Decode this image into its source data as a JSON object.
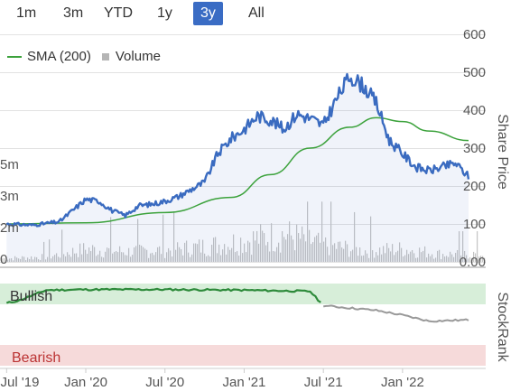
{
  "range_selector": {
    "options": [
      "1m",
      "3m",
      "YTD",
      "1y",
      "3y",
      "All"
    ],
    "selected": "3y"
  },
  "legend": {
    "sma_label": "SMA (200)",
    "volume_label": "Volume"
  },
  "colors": {
    "price": "#3a6bc0",
    "sma": "#3ca23c",
    "volume": "#c4c4c4",
    "bullish_band": "#d7eed9",
    "bearish_band": "#f6dada",
    "stockrank_bull": "#2d8a3a",
    "stockrank_neutral": "#999999",
    "selected_button": "#3a6cc4"
  },
  "chart_data": {
    "type": "line",
    "ylabel": "Share Price",
    "y_ticks": [
      "600",
      "500",
      "400",
      "300",
      "200",
      "100",
      "0.00"
    ],
    "ylim": [
      0,
      600
    ],
    "volume_ticks": [
      "5m",
      "3m",
      "2m",
      "0"
    ],
    "x_ticks": [
      "Jul '19",
      "Jan '20",
      "Jul '20",
      "Jan '21",
      "Jul '21",
      "Jan '22"
    ],
    "series": [
      {
        "name": "",
        "x": [
          "2019-07",
          "2019-09",
          "2019-11",
          "2020-01",
          "2020-02",
          "2020-03",
          "2020-04",
          "2020-05",
          "2020-06",
          "2020-07",
          "2020-08",
          "2020-10",
          "2020-11",
          "2020-12",
          "2021-01",
          "2021-02",
          "2021-03",
          "2021-04",
          "2021-05",
          "2021-06",
          "2021-07",
          "2021-08",
          "2021-09",
          "2021-10",
          "2021-11",
          "2021-12",
          "2022-01",
          "2022-02",
          "2022-03",
          "2022-04",
          "2022-05",
          "2022-06"
        ],
        "values": [
          100,
          97,
          106,
          165,
          160,
          135,
          122,
          148,
          152,
          160,
          172,
          210,
          285,
          325,
          350,
          385,
          375,
          350,
          390,
          378,
          360,
          430,
          490,
          465,
          420,
          320,
          285,
          250,
          240,
          250,
          260,
          225
        ]
      },
      {
        "name": "SMA (200)",
        "x": [
          "2019-07",
          "2020-01",
          "2020-07",
          "2020-12",
          "2021-03",
          "2021-06",
          "2021-09",
          "2021-11",
          "2022-01",
          "2022-03",
          "2022-06"
        ],
        "values": [
          100,
          103,
          130,
          170,
          230,
          300,
          355,
          380,
          370,
          345,
          320
        ]
      },
      {
        "name": "Volume",
        "x": [
          "2019-07",
          "2019-10",
          "2020-01",
          "2020-04",
          "2020-07",
          "2020-10",
          "2021-01",
          "2021-04",
          "2021-07",
          "2021-10",
          "2022-01",
          "2022-04"
        ],
        "values": [
          0.4,
          0.6,
          1.5,
          1.2,
          1.4,
          1.8,
          2.5,
          3.2,
          2.0,
          1.3,
          1.5,
          0.9
        ]
      }
    ]
  },
  "stockrank": {
    "label": "StockRank",
    "bullish_label": "Bullish",
    "bearish_label": "Bearish",
    "x": [
      "2019-07",
      "2019-08",
      "2019-10",
      "2020-01",
      "2020-07",
      "2021-01",
      "2021-06",
      "2021-07",
      "2021-09",
      "2021-11",
      "2022-01",
      "2022-03",
      "2022-06"
    ],
    "values": [
      70,
      75,
      92,
      93,
      93,
      92,
      90,
      66,
      62,
      58,
      50,
      40,
      42
    ]
  }
}
